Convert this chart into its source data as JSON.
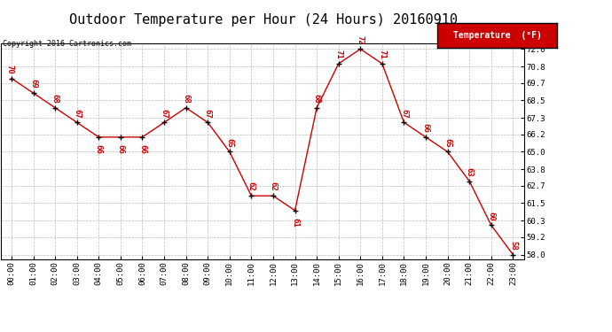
{
  "title": "Outdoor Temperature per Hour (24 Hours) 20160910",
  "copyright": "Copyright 2016 Cartronics.com",
  "legend_label": "Temperature  (°F)",
  "hours": [
    0,
    1,
    2,
    3,
    4,
    5,
    6,
    7,
    8,
    9,
    10,
    11,
    12,
    13,
    14,
    15,
    16,
    17,
    18,
    19,
    20,
    21,
    22,
    23
  ],
  "hour_labels": [
    "00:00",
    "01:00",
    "02:00",
    "03:00",
    "04:00",
    "05:00",
    "06:00",
    "07:00",
    "08:00",
    "09:00",
    "10:00",
    "11:00",
    "12:00",
    "13:00",
    "14:00",
    "15:00",
    "16:00",
    "17:00",
    "18:00",
    "19:00",
    "20:00",
    "21:00",
    "22:00",
    "23:00"
  ],
  "temps": [
    70,
    69,
    68,
    67,
    66,
    66,
    66,
    67,
    68,
    67,
    65,
    62,
    62,
    61,
    68,
    71,
    72,
    71,
    67,
    66,
    65,
    63,
    60,
    58
  ],
  "ylim_min": 57.7,
  "ylim_max": 72.4,
  "yticks": [
    58.0,
    59.2,
    60.3,
    61.5,
    62.7,
    63.8,
    65.0,
    66.2,
    67.3,
    68.5,
    69.7,
    70.8,
    72.0
  ],
  "line_color": "#cc0000",
  "marker_color": "#000000",
  "label_color": "#cc0000",
  "legend_bg": "#cc0000",
  "legend_fg": "#ffffff",
  "grid_color": "#bbbbbb",
  "bg_color": "#ffffff",
  "title_fontsize": 11,
  "label_fontsize": 6.5,
  "tick_fontsize": 6.5,
  "copyright_fontsize": 6
}
